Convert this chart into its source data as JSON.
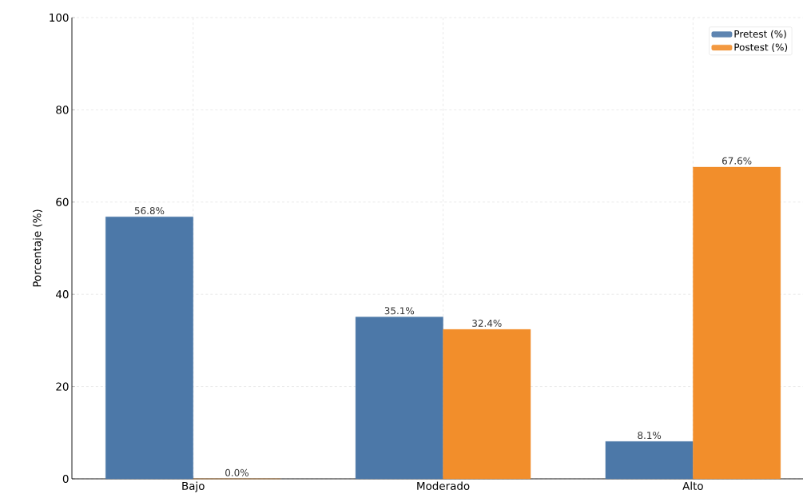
{
  "chart_data": {
    "type": "bar",
    "ylabel": "Porcentaje (%)",
    "categories": [
      "Bajo",
      "Moderado",
      "Alto"
    ],
    "series": [
      {
        "name": "Pretest (%)",
        "color": "#4c78a8",
        "values": [
          56.8,
          35.1,
          8.1
        ],
        "value_labels": [
          "56.8%",
          "35.1%",
          "8.1%"
        ]
      },
      {
        "name": "Postest (%)",
        "color": "#f28e2b",
        "values": [
          0.0,
          32.4,
          67.6
        ],
        "value_labels": [
          "0.0%",
          "32.4%",
          "67.6%"
        ]
      }
    ],
    "ylim": [
      0,
      100
    ],
    "yticks": [
      0,
      20,
      40,
      60,
      80,
      100
    ],
    "grid": true,
    "legend": "top right"
  }
}
